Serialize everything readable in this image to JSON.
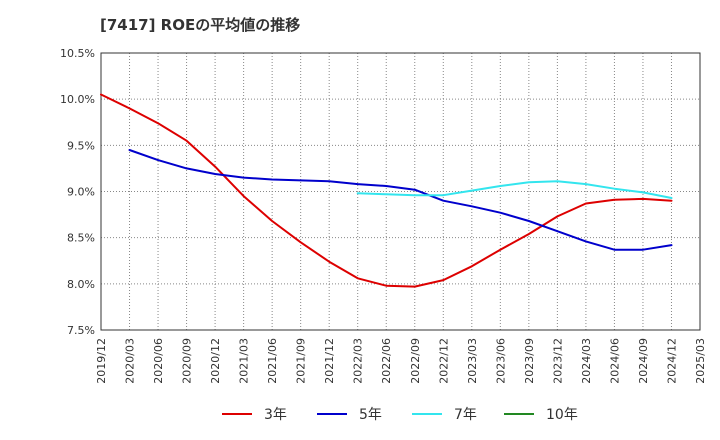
{
  "chart_data": {
    "type": "line",
    "title": "[7417]  ROEの平均値の推移",
    "xlabel": "",
    "ylabel": "",
    "ylim": [
      7.5,
      10.5
    ],
    "y_ticks": [
      "7.5%",
      "8.0%",
      "8.5%",
      "9.0%",
      "9.5%",
      "10.0%",
      "10.5%"
    ],
    "y_tick_values": [
      7.5,
      8.0,
      8.5,
      9.0,
      9.5,
      10.0,
      10.5
    ],
    "x_ticks": [
      "2019/12",
      "2020/03",
      "2020/06",
      "2020/09",
      "2020/12",
      "2021/03",
      "2021/06",
      "2021/09",
      "2021/12",
      "2022/03",
      "2022/06",
      "2022/09",
      "2022/12",
      "2023/03",
      "2023/06",
      "2023/09",
      "2023/12",
      "2024/03",
      "2024/06",
      "2024/09",
      "2024/12",
      "2025/03"
    ],
    "grid": true,
    "legend_position": "bottom",
    "colors": {
      "3年": "#dd0000",
      "5年": "#0000cc",
      "7年": "#33e5ee",
      "10年": "#228822"
    },
    "series": [
      {
        "name": "3年",
        "x": [
          "2019/12",
          "2020/03",
          "2020/06",
          "2020/09",
          "2020/12",
          "2021/03",
          "2021/06",
          "2021/09",
          "2021/12",
          "2022/03",
          "2022/06",
          "2022/09",
          "2022/12",
          "2023/03",
          "2023/06",
          "2023/09",
          "2023/12",
          "2024/03",
          "2024/06",
          "2024/09",
          "2024/12"
        ],
        "values": [
          10.05,
          9.9,
          9.74,
          9.55,
          9.27,
          8.95,
          8.68,
          8.45,
          8.24,
          8.06,
          7.98,
          7.97,
          8.04,
          8.19,
          8.37,
          8.54,
          8.73,
          8.87,
          8.91,
          8.92,
          8.9
        ]
      },
      {
        "name": "5年",
        "x": [
          "2020/03",
          "2020/06",
          "2020/09",
          "2020/12",
          "2021/03",
          "2021/06",
          "2021/09",
          "2021/12",
          "2022/03",
          "2022/06",
          "2022/09",
          "2022/12",
          "2023/03",
          "2023/06",
          "2023/09",
          "2023/12",
          "2024/03",
          "2024/06",
          "2024/09",
          "2024/12"
        ],
        "values": [
          9.45,
          9.34,
          9.25,
          9.19,
          9.15,
          9.13,
          9.12,
          9.11,
          9.08,
          9.06,
          9.02,
          8.9,
          8.84,
          8.77,
          8.68,
          8.57,
          8.46,
          8.37,
          8.37,
          8.42
        ]
      },
      {
        "name": "7年",
        "x": [
          "2022/03",
          "2022/06",
          "2022/09",
          "2022/12",
          "2023/03",
          "2023/06",
          "2023/09",
          "2023/12",
          "2024/03",
          "2024/06",
          "2024/09",
          "2024/12"
        ],
        "values": [
          8.98,
          8.97,
          8.96,
          8.96,
          9.01,
          9.06,
          9.1,
          9.11,
          9.08,
          9.03,
          8.99,
          8.93
        ]
      },
      {
        "name": "10年",
        "x": [],
        "values": []
      }
    ],
    "legend": [
      "3年",
      "5年",
      "7年",
      "10年"
    ]
  }
}
